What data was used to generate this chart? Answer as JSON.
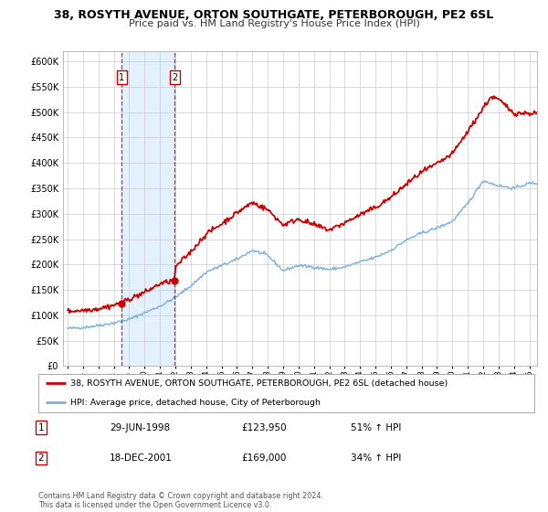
{
  "title": "38, ROSYTH AVENUE, ORTON SOUTHGATE, PETERBOROUGH, PE2 6SL",
  "subtitle": "Price paid vs. HM Land Registry's House Price Index (HPI)",
  "legend_line1": "38, ROSYTH AVENUE, ORTON SOUTHGATE, PETERBOROUGH, PE2 6SL (detached house)",
  "legend_line2": "HPI: Average price, detached house, City of Peterborough",
  "sale1_label": "1",
  "sale1_date": "29-JUN-1998",
  "sale1_price": "£123,950",
  "sale1_hpi": "51% ↑ HPI",
  "sale2_label": "2",
  "sale2_date": "18-DEC-2001",
  "sale2_price": "£169,000",
  "sale2_hpi": "34% ↑ HPI",
  "copyright_text": "Contains HM Land Registry data © Crown copyright and database right 2024.\nThis data is licensed under the Open Government Licence v3.0.",
  "sale1_year": 1998.5,
  "sale2_year": 2001.96,
  "sale1_value": 123950,
  "sale2_value": 169000,
  "red_color": "#cc0000",
  "blue_color": "#7aafdc",
  "shade_color": "#ddeeff",
  "grid_color": "#cccccc",
  "background_color": "#ffffff",
  "ylim": [
    0,
    620000
  ],
  "xlim_min": 1994.7,
  "xlim_max": 2025.5,
  "yticks": [
    0,
    50000,
    100000,
    150000,
    200000,
    250000,
    300000,
    350000,
    400000,
    450000,
    500000,
    550000,
    600000
  ],
  "title_fontsize": 9,
  "subtitle_fontsize": 8
}
